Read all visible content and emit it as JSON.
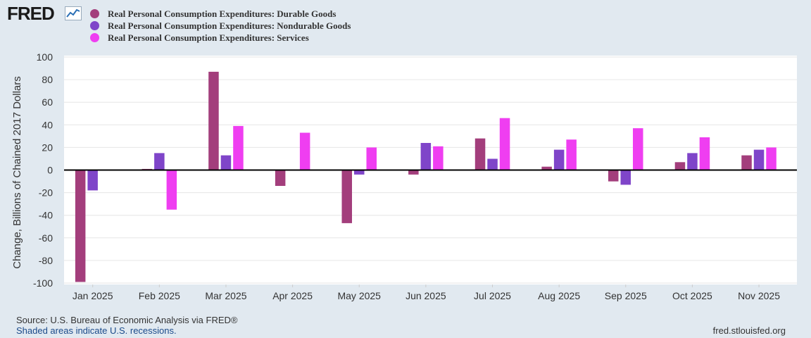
{
  "brand": {
    "logo_text": "FRED",
    "logo_icon": "line-chart-icon"
  },
  "chart_data": {
    "type": "bar",
    "categories": [
      "Jan 2025",
      "Feb 2025",
      "Mar 2025",
      "Apr 2025",
      "May 2025",
      "Jun 2025",
      "Jul 2025",
      "Aug 2025",
      "Sep 2025",
      "Oct 2025",
      "Nov 2025"
    ],
    "series": [
      {
        "name": "Real Personal Consumption Expenditures: Durable Goods",
        "color": "#a33e7c",
        "values": [
          -99,
          1,
          87,
          -14,
          -47,
          -4,
          28,
          3,
          -10,
          7,
          13
        ]
      },
      {
        "name": "Real Personal Consumption Expenditures: Nondurable Goods",
        "color": "#7f45c9",
        "values": [
          -18,
          15,
          13,
          null,
          -4,
          24,
          10,
          18,
          -13,
          15,
          18
        ]
      },
      {
        "name": "Real Personal Consumption Expenditures: Services",
        "color": "#ef3ef1",
        "values": [
          null,
          -35,
          39,
          33,
          20,
          21,
          46,
          27,
          37,
          29,
          20
        ]
      }
    ],
    "ylim": [
      -100,
      100
    ],
    "yticks": [
      100,
      80,
      60,
      40,
      20,
      0,
      -20,
      -40,
      -60,
      -80,
      -100
    ],
    "ylabel": "Change, Billions of Chained 2017 Dollars",
    "xlabel": "",
    "title": ""
  },
  "footer": {
    "source": "Source: U.S. Bureau of Economic Analysis via FRED®",
    "recessions": "Shaded areas indicate U.S. recessions.",
    "url": "fred.stlouisfed.org"
  }
}
